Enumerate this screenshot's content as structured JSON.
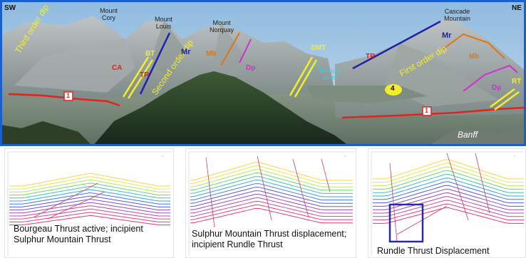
{
  "photo": {
    "corner_left": "SW",
    "corner_right": "NE",
    "peaks": {
      "cory": "Mount\nCory",
      "louis": "Mount\nLouis",
      "norquay": "Mount\nNorquay",
      "cascade": "Cascade\nMountain"
    },
    "annotations": {
      "third_order_dip": "Third order dip",
      "second_order_dip": "Second order dip",
      "first_order_dip": "First order dip",
      "bt": "BT",
      "ca": "CA",
      "tr_left": "TR",
      "mr_left": "Mr",
      "mb_left": "Mb",
      "dp_left": "Dp",
      "smt": "SMT",
      "norquay_ski": "Norquay\nski hill",
      "tr_right": "TR",
      "mr_right": "Mr",
      "mb_right": "Mb",
      "dp_right": "Dp",
      "rt": "RT",
      "box1_left": "1",
      "box1_right": "1",
      "circle4": "4",
      "banff": "Banff"
    },
    "colors": {
      "thrust_red": "#e0231f",
      "yellow": "#f4ee2a",
      "blue_line": "#1c24a8",
      "orange": "#d9771b",
      "magenta": "#d42bd4",
      "frame": "#1a5fd0"
    }
  },
  "panels": [
    {
      "caption": "Bourgeau Thrust active; incipient\nSulphur Mountain Thrust"
    },
    {
      "caption": "Sulphur Mountain Thrust displacement;\nincipient Rundle Thrust"
    },
    {
      "caption": "Rundle Thrust Displacement"
    }
  ],
  "layer_colors": [
    "#ffd24a",
    "#e8e84a",
    "#b8e85a",
    "#6cd86c",
    "#3cc8a8",
    "#2ea8e8",
    "#3a7ae8",
    "#5a5ae0",
    "#7a50d8",
    "#9a48c8",
    "#b848b0",
    "#d04898",
    "#e04080",
    "#e83870"
  ]
}
